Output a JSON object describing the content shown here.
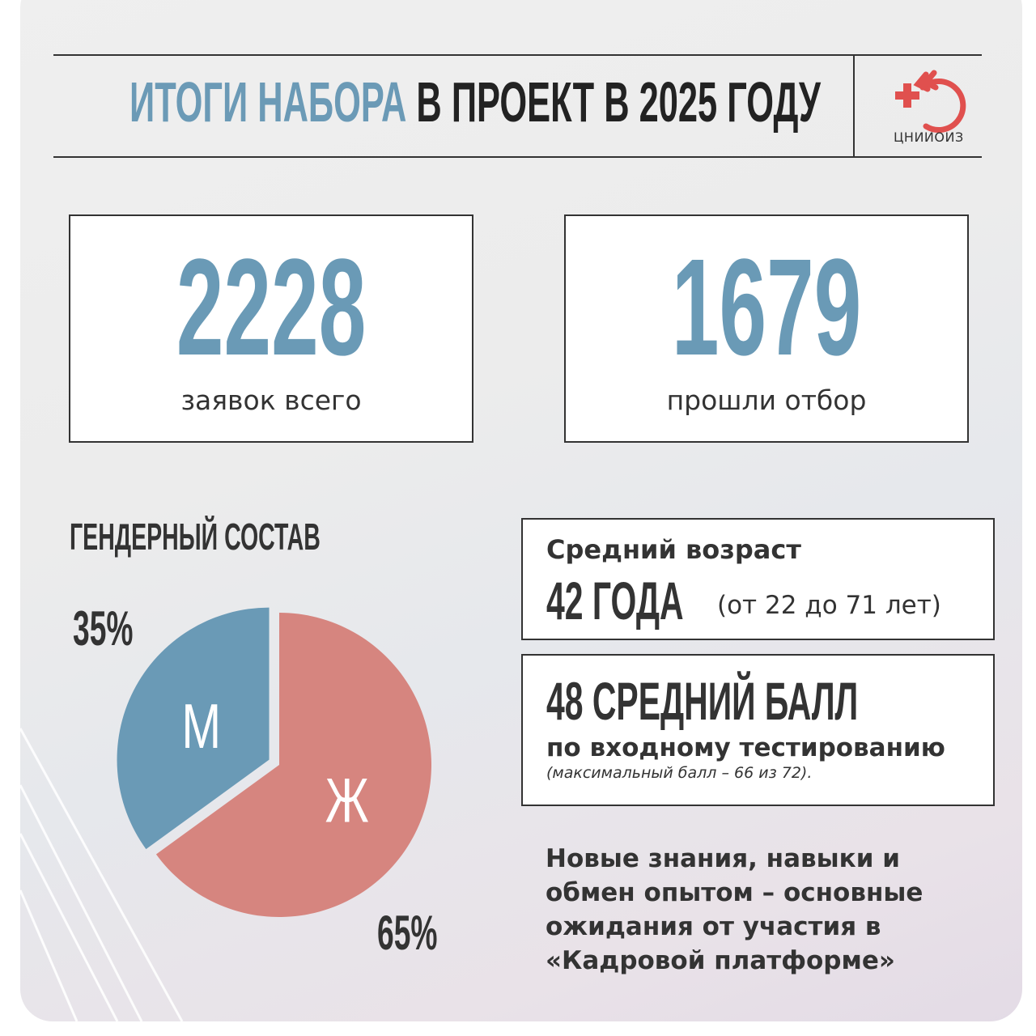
{
  "header": {
    "title_highlight": "ИТОГИ НАБОРА",
    "title_rest": "В ПРОЕКТ В 2025 ГОДУ",
    "logo_text": "ЦНИИОИЗ"
  },
  "stats": [
    {
      "value": "2228",
      "label": "заявок всего"
    },
    {
      "value": "1679",
      "label": "прошли отбор"
    }
  ],
  "gender": {
    "title": "ГЕНДЕРНЫЙ СОСТАВ",
    "male_pct": "35%",
    "female_pct": "65%"
  },
  "age": {
    "label": "Средний возраст",
    "value": "42 ГОДА",
    "range": "(от 22 до 71 лет)"
  },
  "score": {
    "value": "48 СРЕДНИЙ БАЛЛ",
    "label": "по входному тестированию",
    "note": "(максимальный балл – 66 из 72)."
  },
  "expectations": [
    "Новые знания, навыки и",
    "обмен опытом – основные",
    "ожидания от участия в",
    "«Кадровой платформе»"
  ],
  "colors": {
    "blue": "#6a9ab6",
    "pink": "#d6857f",
    "logo_red": "#e0504e"
  },
  "chart_data": {
    "type": "pie",
    "categories": [
      "М",
      "Ж"
    ],
    "values": [
      35,
      65
    ],
    "colors": [
      "#6a9ab6",
      "#d6857f"
    ]
  }
}
